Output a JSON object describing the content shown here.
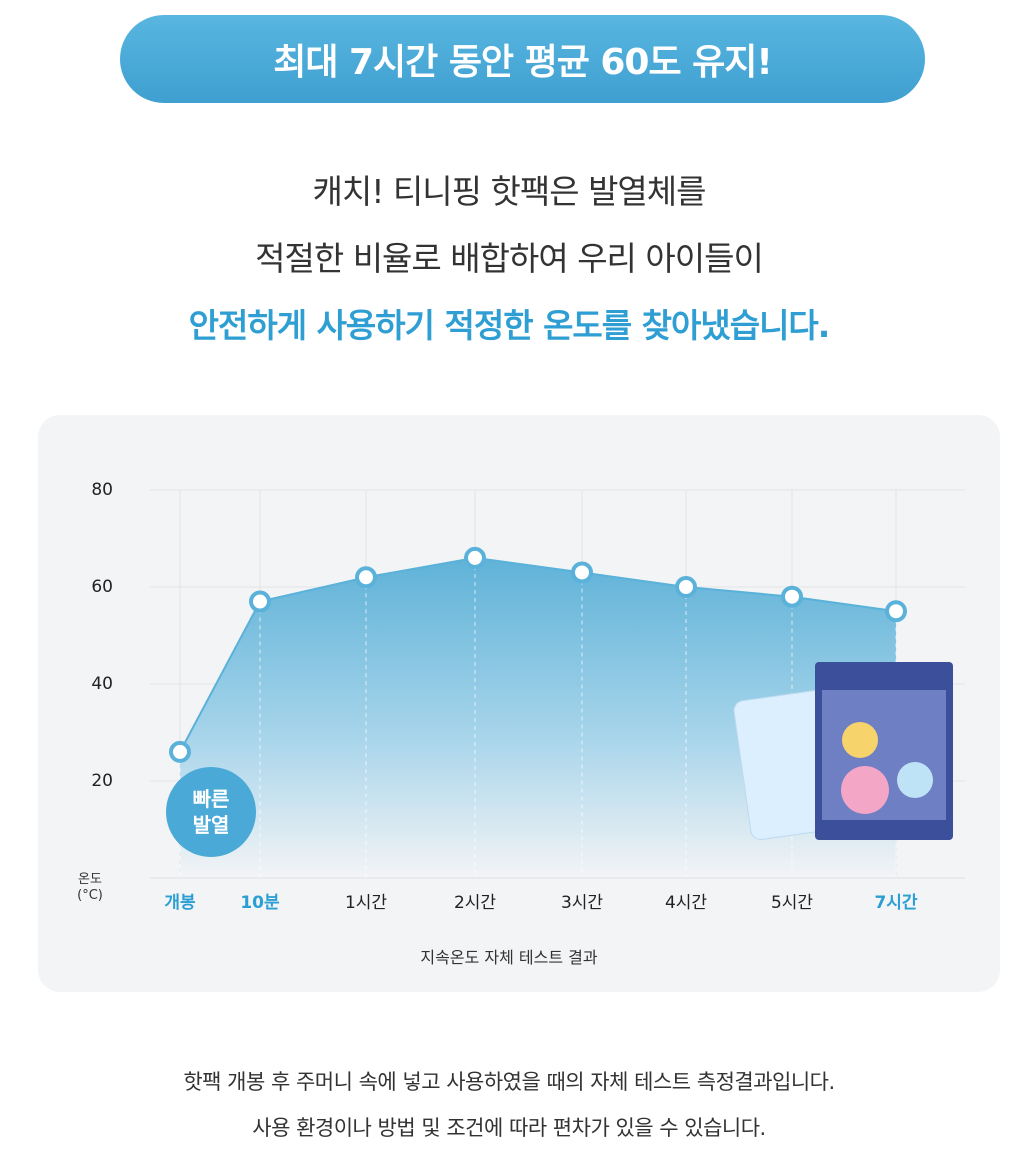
{
  "header": {
    "badge": "최대 7시간 동안 평균 60도 유지!",
    "lines": [
      "캐치! 티니핑 핫팩은 발열체를",
      "적절한 비율로 배합하여 우리 아이들이",
      "안전하게 사용하기 적정한 온도를 찾아냈습니다."
    ]
  },
  "chart_data": {
    "type": "area",
    "x_label": "지속온도 자체 테스트 결과",
    "y_label": "온도 (°C)",
    "annotation": "빠른 발열",
    "categories": [
      "개봉",
      "10분",
      "1시간",
      "2시간",
      "3시간",
      "4시간",
      "5시간",
      "7시간"
    ],
    "values": [
      26,
      57,
      62,
      66,
      63,
      60,
      58,
      55
    ],
    "color": "#5ab1d9",
    "highlight": [
      0,
      1,
      7
    ],
    "highlight_color": "#2b9fd4",
    "ylim": [
      0,
      80
    ],
    "yticks": [
      20,
      40,
      60,
      80
    ],
    "grid": true
  },
  "footnote": [
    "핫팩 개봉 후 주머니 속에 넣고 사용하였을 때의 자체 테스트 측정결과입니다.",
    "사용 환경이나 방법 및 조건에 따라 편차가 있을 수 있습니다."
  ]
}
